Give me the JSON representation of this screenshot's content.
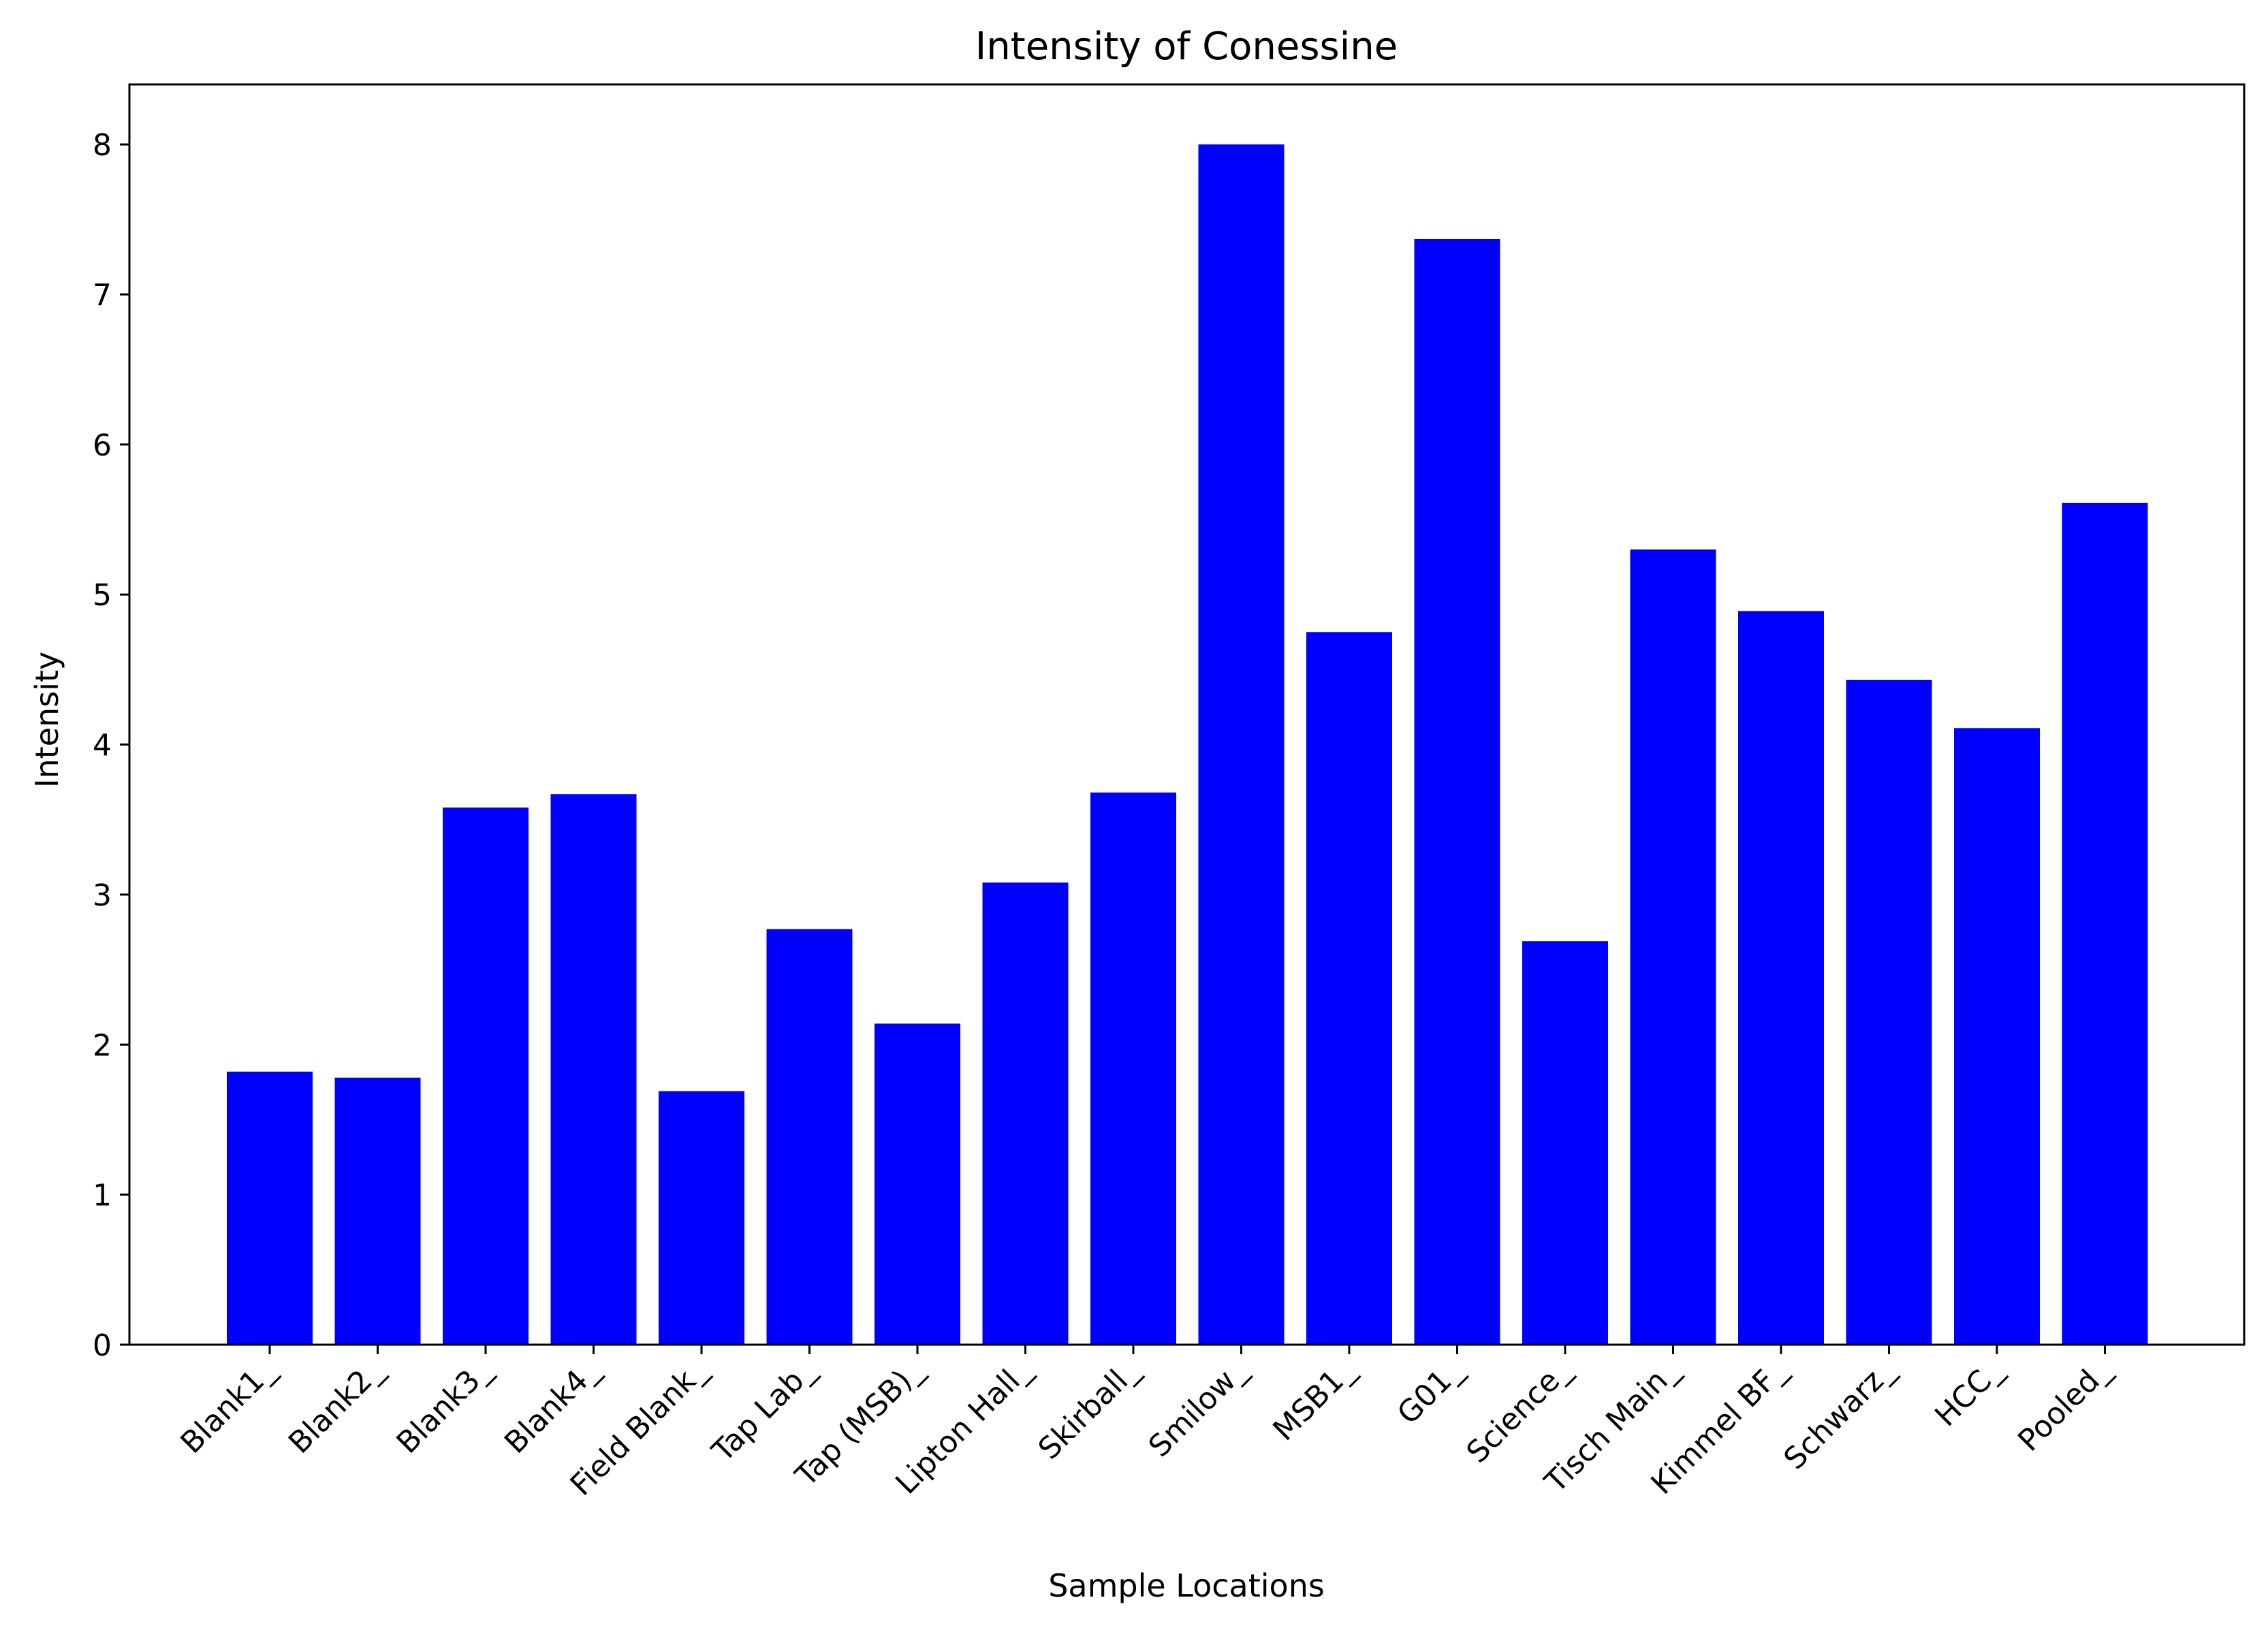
{
  "chart_data": {
    "type": "bar",
    "title": "Intensity of Conessine",
    "xlabel": "Sample Locations",
    "ylabel": "Intensity",
    "categories": [
      "Blank1_",
      "Blank2_",
      "Blank3_",
      "Blank4_",
      "Field Blank_",
      "Tap Lab_",
      "Tap (MSB)_",
      "Lipton Hall_",
      "Skirball_",
      "Smilow_",
      "MSB1_",
      "G01_",
      "Science_",
      "Tisch Main_",
      "Kimmel BF_",
      "Schwarz_",
      "HCC_",
      "Pooled_"
    ],
    "values": [
      1.82,
      1.78,
      3.58,
      3.67,
      1.69,
      2.77,
      2.14,
      3.08,
      3.68,
      8.0,
      4.75,
      7.37,
      2.69,
      5.3,
      4.89,
      4.43,
      4.11,
      5.61
    ],
    "yticks": [
      0,
      1,
      2,
      3,
      4,
      5,
      6,
      7,
      8
    ],
    "ylim": [
      0,
      8.4
    ],
    "bar_color": "#0000ff",
    "grid": false,
    "legend": "none"
  }
}
